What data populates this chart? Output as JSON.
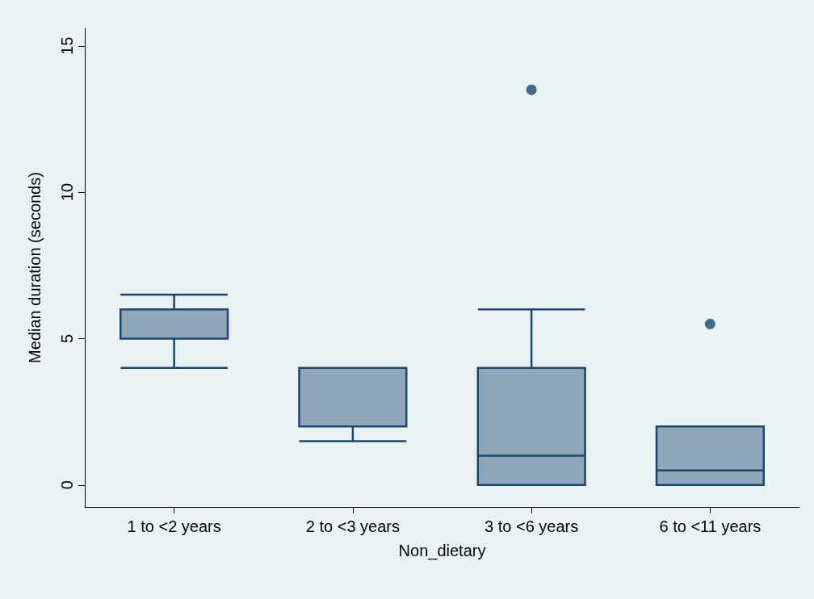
{
  "chart_data": {
    "type": "box",
    "xlabel": "Non_dietary",
    "ylabel": "Median duration (seconds)",
    "categories": [
      "1 to <2 years",
      "2 to <3 years",
      "3 to <6 years",
      "6 to <11 years"
    ],
    "boxes": [
      {
        "low": 4,
        "q1": 5,
        "median": 5,
        "q3": 6,
        "high": 6.5
      },
      {
        "low": 1.5,
        "q1": 2,
        "median": 2,
        "q3": 4,
        "high": 4
      },
      {
        "low": 0,
        "q1": 0,
        "median": 1,
        "q3": 4,
        "high": 6,
        "outliers": [
          13.5
        ]
      },
      {
        "low": 0,
        "q1": 0,
        "median": 0.5,
        "q3": 2,
        "high": 2,
        "outliers": [
          5.5
        ]
      }
    ],
    "color": "#8fa5b8",
    "ylim": [
      -0.75,
      15.6
    ],
    "yticks": [
      0,
      5,
      10,
      15
    ],
    "grid": false
  }
}
